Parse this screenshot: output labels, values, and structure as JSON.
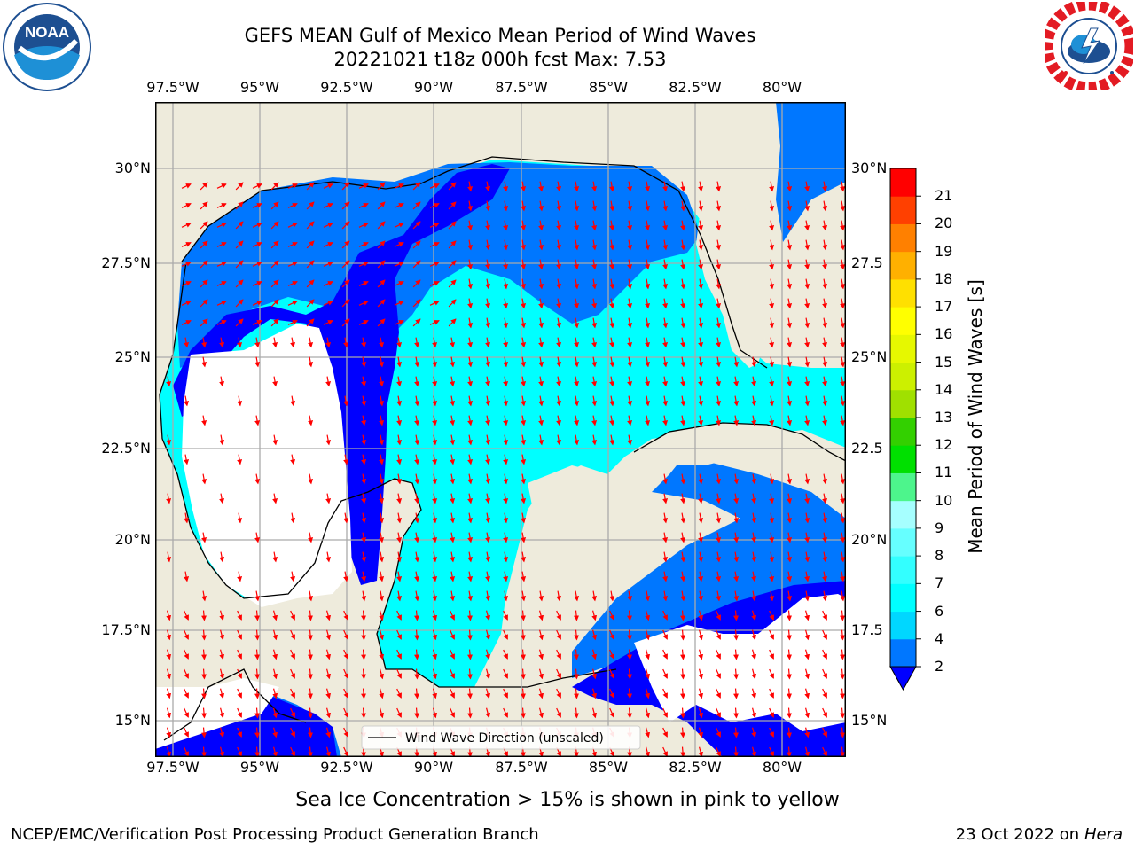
{
  "header": {
    "title_line1": "GEFS MEAN Gulf of Mexico Mean Period of Wind Waves",
    "title_line2": "20221021 t18z 000h fcst   Max: 7.53"
  },
  "logos": {
    "left": {
      "name": "noaa-logo",
      "text": "NOAA",
      "ring_text": "NATIONAL OCEANIC AND ATMOSPHERIC ADMINISTRATION · U.S. DEPARTMENT OF COMMERCE"
    },
    "right": {
      "name": "nws-logo",
      "ring_text": "NATIONAL WEATHER SERVICE"
    }
  },
  "map": {
    "lon_labels": [
      "97.5°W",
      "95°W",
      "92.5°W",
      "90°W",
      "87.5°W",
      "85°W",
      "82.5°W",
      "80°W"
    ],
    "lat_labels_left": [
      "30°N",
      "27.5°N",
      "25°N",
      "22.5°N",
      "20°N",
      "17.5°N",
      "15°N"
    ],
    "lat_labels_right": [
      "30°N",
      "27.5",
      "25°N",
      "22.5",
      "20°N",
      "17.5",
      "15°N"
    ],
    "legend_label": "Wind Wave Direction (unscaled)",
    "colors": {
      "land": "#EEEBDC",
      "no_data": "#FFFFFF",
      "arrow": "#FF0000",
      "grid": "#AAAAAA"
    }
  },
  "colorbar": {
    "label": "Mean Period of Wind Waves [s]",
    "ticks": [
      "2",
      "4",
      "6",
      "7",
      "8",
      "9",
      "10",
      "11",
      "12",
      "13",
      "14",
      "15",
      "16",
      "17",
      "18",
      "19",
      "20",
      "21"
    ],
    "colors": [
      "#0077FF",
      "#00D7FF",
      "#00FFFF",
      "#33FFFF",
      "#66FFFF",
      "#A6FFFF",
      "#4DF58C",
      "#00E000",
      "#33D000",
      "#A0E000",
      "#CCF000",
      "#E6F800",
      "#FFFF00",
      "#FFE000",
      "#FFB000",
      "#FF8000",
      "#FF4000",
      "#FF0000"
    ],
    "under_color": "#0000FF"
  },
  "caption": "Sea Ice Concentration > 15% is shown in pink to yellow",
  "footer": {
    "left": "NCEP/EMC/Verification Post Processing Product Generation Branch",
    "date": "23 Oct 2022 on ",
    "machine": "Hera"
  }
}
